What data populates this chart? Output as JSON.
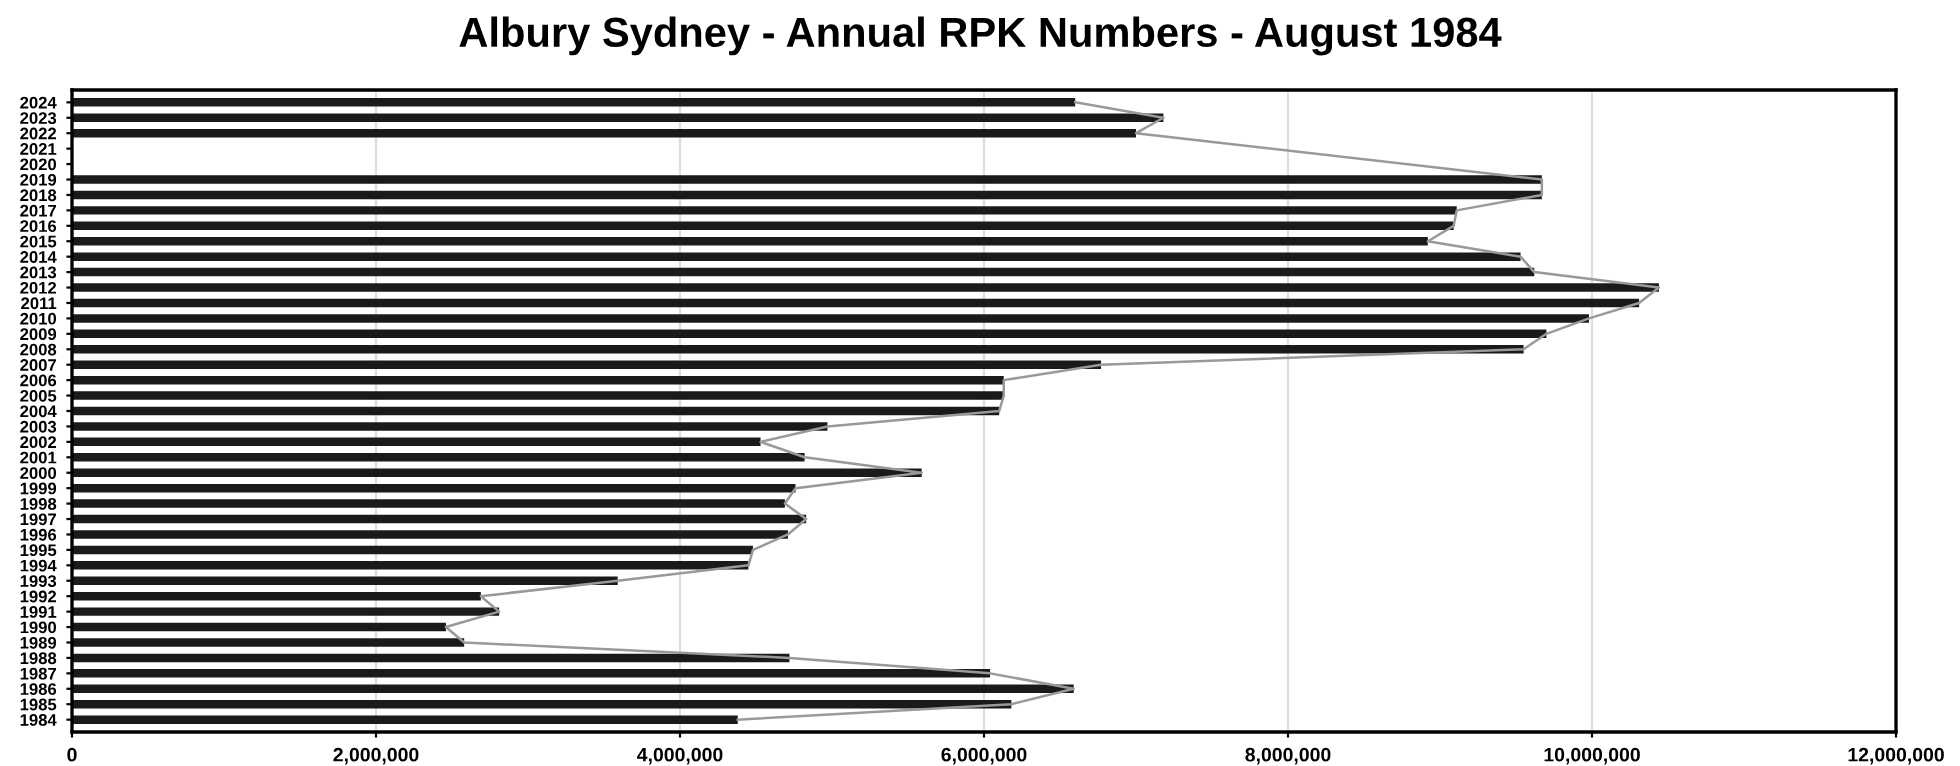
{
  "chart_data": {
    "type": "bar",
    "orientation": "horizontal",
    "title": "Albury Sydney - Annual RPK Numbers - August 1984",
    "categories": [
      "2024",
      "2023",
      "2022",
      "2021",
      "2020",
      "2019",
      "2018",
      "2017",
      "2016",
      "2015",
      "2014",
      "2013",
      "2012",
      "2011",
      "2010",
      "2009",
      "2008",
      "2007",
      "2006",
      "2005",
      "2004",
      "2003",
      "2002",
      "2001",
      "2000",
      "1999",
      "1998",
      "1997",
      "1996",
      "1995",
      "1994",
      "1993",
      "1992",
      "1991",
      "1990",
      "1989",
      "1988",
      "1987",
      "1986",
      "1985",
      "1984"
    ],
    "series": [
      {
        "color": "#1a1a1a",
        "values": [
          6600000,
          7180000,
          7000000,
          null,
          null,
          9670000,
          9670000,
          9110000,
          9090000,
          8920000,
          9530000,
          9620000,
          10440000,
          10310000,
          9980000,
          9700000,
          9550000,
          6770000,
          6130000,
          6130000,
          6100000,
          4970000,
          4530000,
          4820000,
          5590000,
          4760000,
          4690000,
          4830000,
          4710000,
          4480000,
          4450000,
          3590000,
          2690000,
          2810000,
          2460000,
          2580000,
          4720000,
          6040000,
          6590000,
          6180000,
          4380000
        ]
      },
      {
        "type": "line",
        "color": "#999999",
        "values": [
          6600000,
          7180000,
          7000000,
          null,
          null,
          9670000,
          9670000,
          9110000,
          9090000,
          8920000,
          9530000,
          9620000,
          10440000,
          10310000,
          9980000,
          9700000,
          9550000,
          6770000,
          6130000,
          6130000,
          6100000,
          4970000,
          4530000,
          4820000,
          5590000,
          4760000,
          4690000,
          4830000,
          4710000,
          4480000,
          4450000,
          3590000,
          2690000,
          2810000,
          2460000,
          2580000,
          4720000,
          6040000,
          6590000,
          6180000,
          4380000
        ]
      }
    ],
    "xlim": [
      0,
      12000000
    ],
    "xticks": [
      {
        "value": 0,
        "label": "0"
      },
      {
        "value": 2000000,
        "label": "2,000,000"
      },
      {
        "value": 4000000,
        "label": "4,000,000"
      },
      {
        "value": 6000000,
        "label": "6,000,000"
      },
      {
        "value": 8000000,
        "label": "8,000,000"
      },
      {
        "value": 10000000,
        "label": "10,000,000"
      },
      {
        "value": 12000000,
        "label": "12,000,000"
      }
    ],
    "grid": "x",
    "legend": false
  }
}
